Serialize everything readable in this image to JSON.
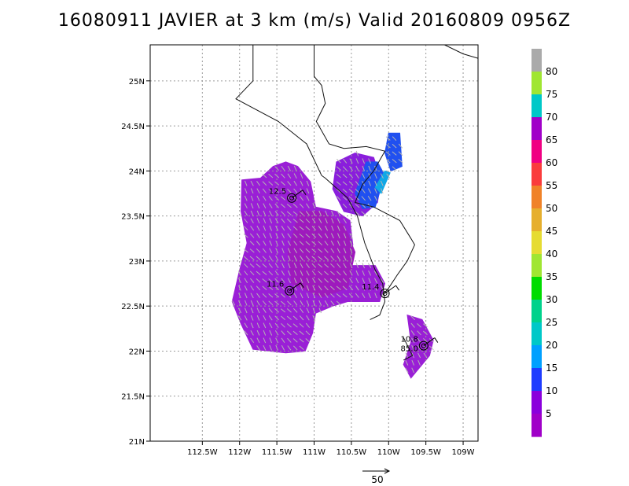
{
  "title": "16080911 JAVIER at 3 km (m/s) Valid 20160809 0956Z",
  "chart_data": {
    "type": "heatmap",
    "title": "16080911 JAVIER at 3 km (m/s) Valid 20160809 0956Z",
    "xlabel": "",
    "ylabel": "",
    "xlim": [
      -113.2,
      -108.8
    ],
    "ylim": [
      21.0,
      25.4
    ],
    "x_ticks": [
      {
        "value": -112.5,
        "label": "112.5W"
      },
      {
        "value": -112.0,
        "label": "112W"
      },
      {
        "value": -111.5,
        "label": "111.5W"
      },
      {
        "value": -111.0,
        "label": "111W"
      },
      {
        "value": -110.5,
        "label": "110.5W"
      },
      {
        "value": -110.0,
        "label": "110W"
      },
      {
        "value": -109.5,
        "label": "109.5W"
      },
      {
        "value": -109.0,
        "label": "109W"
      }
    ],
    "y_ticks": [
      {
        "value": 21.0,
        "label": "21N"
      },
      {
        "value": 21.5,
        "label": "21.5N"
      },
      {
        "value": 22.0,
        "label": "22N"
      },
      {
        "value": 22.5,
        "label": "22.5N"
      },
      {
        "value": 23.0,
        "label": "23N"
      },
      {
        "value": 23.5,
        "label": "23.5N"
      },
      {
        "value": 24.0,
        "label": "24N"
      },
      {
        "value": 24.5,
        "label": "24.5N"
      },
      {
        "value": 25.0,
        "label": "25N"
      }
    ],
    "grid": true,
    "colorbar": {
      "labels": [
        "5",
        "10",
        "15",
        "20",
        "25",
        "30",
        "35",
        "40",
        "45",
        "50",
        "55",
        "60",
        "65",
        "70",
        "75",
        "80"
      ],
      "colors": [
        "#a000c8",
        "#8a00dc",
        "#1e3cff",
        "#00a0ff",
        "#00c8c8",
        "#00d28c",
        "#00dc00",
        "#a0e632",
        "#e6dc32",
        "#e6af2d",
        "#f08228",
        "#fa3c3c",
        "#f00082",
        "#a000c8",
        "#00c8c8",
        "#a0e632",
        "#aaaaaa"
      ]
    },
    "wind_regions": [
      {
        "name": "western",
        "speed_ms": 3,
        "color": "#9A1FD6",
        "polygon": [
          [
            -111.97,
            23.9
          ],
          [
            -111.72,
            23.92
          ],
          [
            -111.55,
            24.05
          ],
          [
            -111.38,
            24.1
          ],
          [
            -111.22,
            24.05
          ],
          [
            -111.05,
            23.88
          ],
          [
            -110.98,
            23.6
          ],
          [
            -110.7,
            23.55
          ],
          [
            -110.52,
            23.45
          ],
          [
            -110.48,
            23.18
          ],
          [
            -110.55,
            22.95
          ],
          [
            -110.18,
            22.95
          ],
          [
            -110.05,
            22.75
          ],
          [
            -110.12,
            22.55
          ],
          [
            -110.55,
            22.55
          ],
          [
            -110.75,
            22.5
          ],
          [
            -110.98,
            22.42
          ],
          [
            -111.02,
            22.2
          ],
          [
            -111.12,
            22.0
          ],
          [
            -111.38,
            21.98
          ],
          [
            -111.82,
            22.02
          ],
          [
            -111.98,
            22.3
          ],
          [
            -112.1,
            22.55
          ],
          [
            -112.0,
            22.9
          ],
          [
            -111.9,
            23.2
          ],
          [
            -111.98,
            23.55
          ]
        ]
      },
      {
        "name": "center-high",
        "speed_ms": 6,
        "color": "#9E1ABD",
        "polygon": [
          [
            -111.2,
            23.55
          ],
          [
            -110.9,
            23.55
          ],
          [
            -110.6,
            23.4
          ],
          [
            -110.45,
            23.1
          ],
          [
            -110.55,
            22.7
          ],
          [
            -110.9,
            22.6
          ],
          [
            -111.3,
            22.75
          ],
          [
            -111.35,
            23.1
          ]
        ]
      },
      {
        "name": "north-east",
        "speed_ms": 9,
        "color": "#8A1EDC",
        "polygon": [
          [
            -110.7,
            24.1
          ],
          [
            -110.45,
            24.2
          ],
          [
            -110.2,
            24.15
          ],
          [
            -110.1,
            23.9
          ],
          [
            -110.15,
            23.65
          ],
          [
            -110.35,
            23.5
          ],
          [
            -110.6,
            23.55
          ],
          [
            -110.75,
            23.8
          ]
        ]
      },
      {
        "name": "south-east",
        "speed_ms": 3,
        "color": "#9A1FD6",
        "polygon": [
          [
            -109.75,
            22.4
          ],
          [
            -109.55,
            22.35
          ],
          [
            -109.4,
            22.12
          ],
          [
            -109.45,
            21.95
          ],
          [
            -109.7,
            21.7
          ],
          [
            -109.8,
            21.85
          ],
          [
            -109.7,
            22.1
          ]
        ]
      }
    ],
    "wind_strong": [
      {
        "name": "blue",
        "speed_ms": 12,
        "color": "#2050F0",
        "polygon": [
          [
            -110.3,
            24.1
          ],
          [
            -110.15,
            24.1
          ],
          [
            -110.05,
            23.95
          ],
          [
            -110.18,
            23.6
          ],
          [
            -110.35,
            23.58
          ],
          [
            -110.45,
            23.75
          ]
        ]
      },
      {
        "name": "blue-top",
        "speed_ms": 12,
        "color": "#2050F0",
        "polygon": [
          [
            -110.0,
            24.42
          ],
          [
            -109.85,
            24.42
          ],
          [
            -109.82,
            24.05
          ],
          [
            -109.97,
            24.0
          ],
          [
            -110.05,
            24.2
          ]
        ]
      },
      {
        "name": "cyan",
        "speed_ms": 18,
        "color": "#10A8E6",
        "polygon": [
          [
            -110.05,
            24.0
          ],
          [
            -109.98,
            23.98
          ],
          [
            -110.1,
            23.75
          ],
          [
            -110.18,
            23.82
          ]
        ]
      }
    ],
    "coastline": [
      [
        [
          -111.82,
          25.4
        ],
        [
          -111.82,
          25.0
        ],
        [
          -112.05,
          24.8
        ],
        [
          -111.48,
          24.55
        ],
        [
          -111.1,
          24.3
        ],
        [
          -110.9,
          23.95
        ],
        [
          -110.85,
          23.92
        ],
        [
          -110.55,
          23.7
        ],
        [
          -110.42,
          23.5
        ],
        [
          -110.32,
          23.2
        ],
        [
          -110.18,
          22.9
        ],
        [
          -110.08,
          22.75
        ],
        [
          -110.05,
          22.55
        ],
        [
          -110.12,
          22.4
        ],
        [
          -110.25,
          22.35
        ]
      ],
      [
        [
          -111.0,
          25.4
        ],
        [
          -111.0,
          25.05
        ],
        [
          -110.9,
          24.95
        ],
        [
          -110.85,
          24.75
        ],
        [
          -110.97,
          24.55
        ],
        [
          -110.8,
          24.3
        ],
        [
          -110.6,
          24.25
        ],
        [
          -110.3,
          24.27
        ],
        [
          -110.05,
          24.22
        ],
        [
          -110.2,
          24.0
        ],
        [
          -110.35,
          23.85
        ],
        [
          -110.45,
          23.65
        ],
        [
          -110.2,
          23.6
        ],
        [
          -109.85,
          23.45
        ],
        [
          -109.7,
          23.25
        ],
        [
          -109.65,
          23.18
        ],
        [
          -109.75,
          23.0
        ],
        [
          -109.88,
          22.85
        ],
        [
          -110.0,
          22.7
        ],
        [
          -110.08,
          22.62
        ]
      ],
      [
        [
          -109.25,
          25.4
        ],
        [
          -109.0,
          25.3
        ],
        [
          -108.8,
          25.25
        ]
      ],
      [
        [
          -109.8,
          22.15
        ],
        [
          -109.68,
          21.95
        ],
        [
          -109.8,
          21.9
        ]
      ]
    ],
    "storm_centers": [
      {
        "lon": -111.3,
        "lat": 23.7,
        "label": "12.5"
      },
      {
        "lon": -111.33,
        "lat": 22.67,
        "label": "11.6"
      },
      {
        "lon": -110.05,
        "lat": 22.64,
        "label": "11.4"
      },
      {
        "lon": -109.53,
        "lat": 22.06,
        "label": "10.8",
        "sublabel": "85.0"
      }
    ],
    "reference_vector": {
      "label": "50",
      "speed_ms": 50
    }
  }
}
